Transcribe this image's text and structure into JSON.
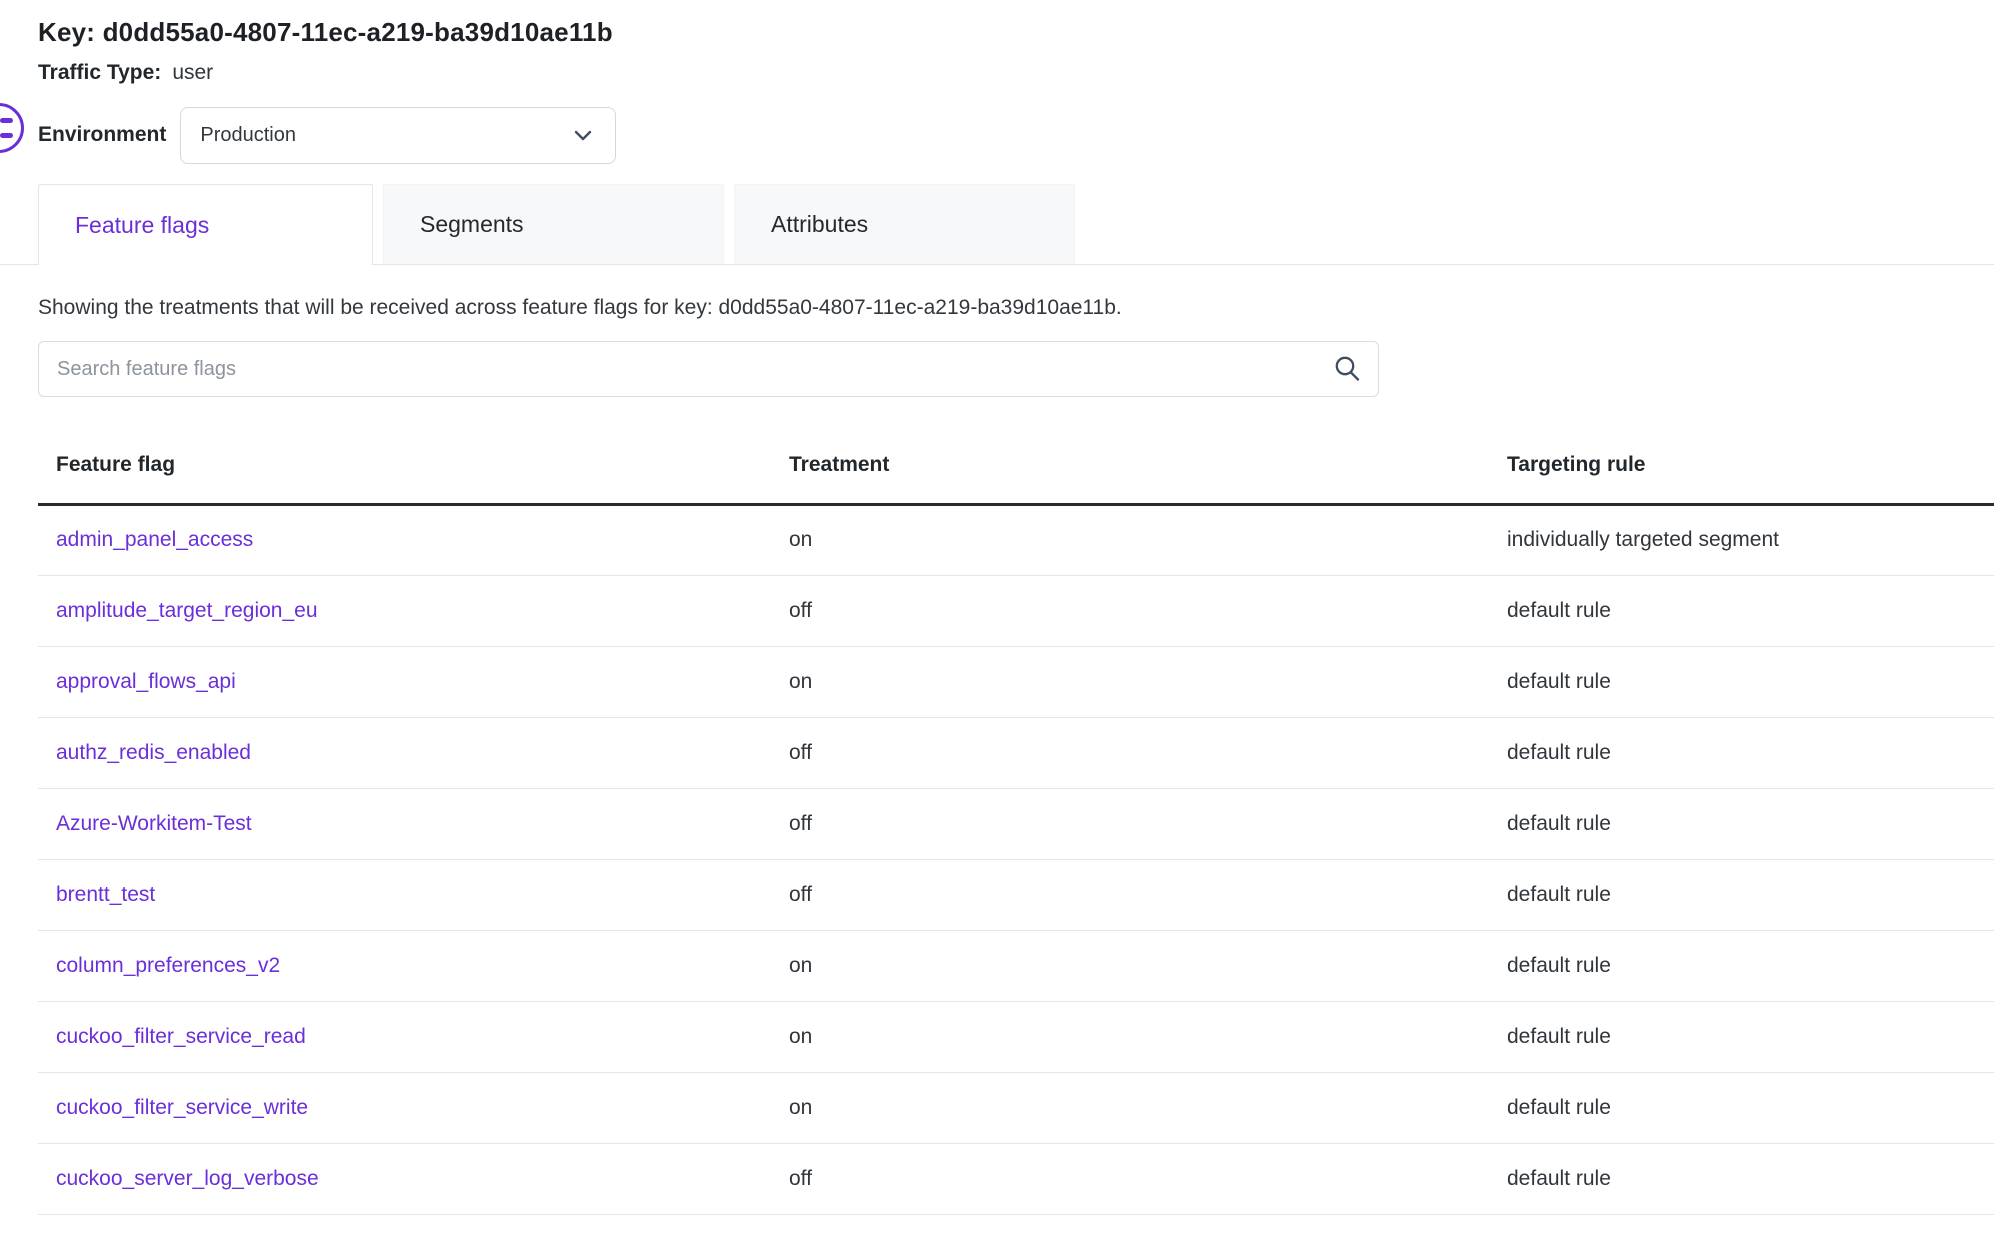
{
  "header": {
    "key_title": "Key: d0dd55a0-4807-11ec-a219-ba39d10ae11b",
    "traffic_type_label": "Traffic Type:",
    "traffic_type_value": "user",
    "environment_label": "Environment",
    "environment_value": "Production"
  },
  "tabs": [
    {
      "label": "Feature flags",
      "active": true
    },
    {
      "label": "Segments",
      "active": false
    },
    {
      "label": "Attributes",
      "active": false
    }
  ],
  "description": "Showing the treatments that will be received across feature flags for key: d0dd55a0-4807-11ec-a219-ba39d10ae11b.",
  "search": {
    "placeholder": "Search feature flags",
    "icon": "search-icon"
  },
  "table": {
    "columns": [
      "Feature flag",
      "Treatment",
      "Targeting rule"
    ],
    "rows": [
      {
        "flag": "admin_panel_access",
        "treatment": "on",
        "rule": "individually targeted segment"
      },
      {
        "flag": "amplitude_target_region_eu",
        "treatment": "off",
        "rule": "default rule"
      },
      {
        "flag": "approval_flows_api",
        "treatment": "on",
        "rule": "default rule"
      },
      {
        "flag": "authz_redis_enabled",
        "treatment": "off",
        "rule": "default rule"
      },
      {
        "flag": "Azure-Workitem-Test",
        "treatment": "off",
        "rule": "default rule"
      },
      {
        "flag": "brentt_test",
        "treatment": "off",
        "rule": "default rule"
      },
      {
        "flag": "column_preferences_v2",
        "treatment": "on",
        "rule": "default rule"
      },
      {
        "flag": "cuckoo_filter_service_read",
        "treatment": "on",
        "rule": "default rule"
      },
      {
        "flag": "cuckoo_filter_service_write",
        "treatment": "on",
        "rule": "default rule"
      },
      {
        "flag": "cuckoo_server_log_verbose",
        "treatment": "off",
        "rule": "default rule"
      }
    ]
  },
  "colors": {
    "accent": "#6b2fd9",
    "heading_text": "#1d2126",
    "body_text": "#30363c",
    "row_divider": "#e4e7ea",
    "header_divider": "#272c31",
    "inactive_tab_bg": "#f7f8fa"
  }
}
